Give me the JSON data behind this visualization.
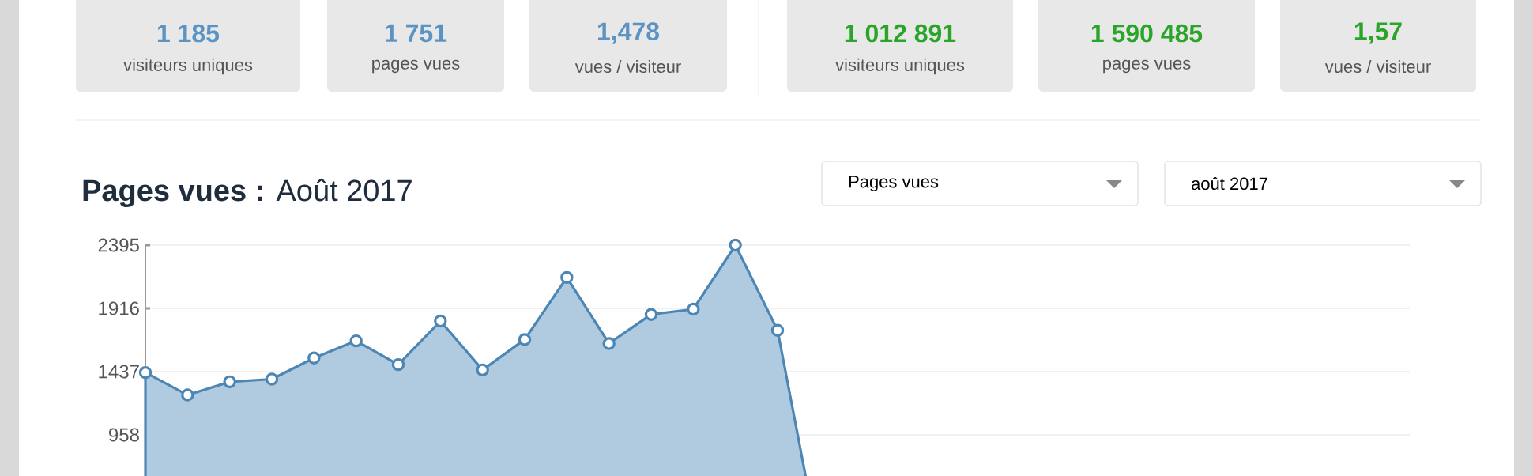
{
  "chart_data": [
    {
      "type": "other",
      "annotations": [
        "1 185",
        "visiteurs uniques",
        "1 751",
        "pages vues",
        "1,478",
        "vues / visiteur",
        "1 012 891",
        "visiteurs uniques",
        "1 590 485",
        "pages vues",
        "1,57",
        "vues / visiteur"
      ]
    },
    {
      "type": "area",
      "title": "**Pages vues :** Août 2017",
      "annotations": [
        "Pages vues",
        "août 2017"
      ],
      "tick_labels": "y",
      "grid": true,
      "marker": "circle",
      "color": "#4b86b4",
      "categories": [
        null,
        null,
        null,
        null,
        null,
        null,
        null,
        null,
        null,
        null,
        null,
        null,
        null,
        null,
        null,
        null,
        null,
        null,
        null,
        null,
        null,
        null,
        null,
        null,
        null,
        null,
        null,
        null,
        null,
        null,
        null
      ],
      "values": [
        1430,
        1260,
        1360,
        1380,
        1540,
        1670,
        1490,
        1820,
        1450,
        1680,
        2150,
        1650,
        1870,
        1910,
        2395,
        1750,
        90,
        null,
        null,
        null,
        null,
        null,
        null,
        null,
        null,
        null,
        null,
        null,
        null,
        null,
        null
      ],
      "ylim": [
        0,
        2395
      ],
      "yticks": [
        958,
        1437,
        1916,
        2395
      ]
    }
  ]
}
